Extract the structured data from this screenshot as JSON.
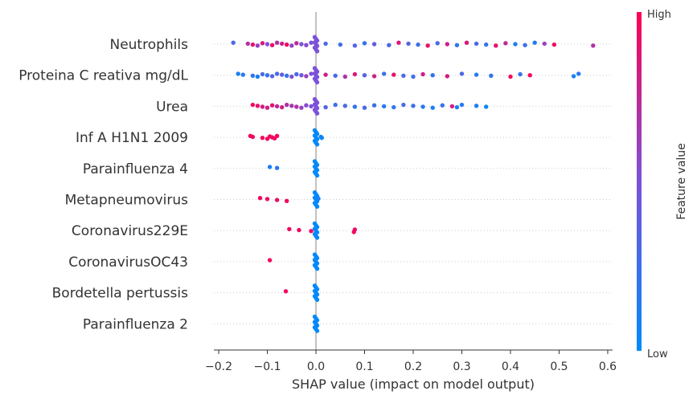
{
  "chart_data": {
    "type": "scatter",
    "subtype": "shap-beeswarm",
    "xlabel": "SHAP value (impact on model output)",
    "xlim": [
      -0.21,
      0.61
    ],
    "x_ticks": [
      -0.2,
      -0.1,
      0.0,
      0.1,
      0.2,
      0.3,
      0.4,
      0.5,
      0.6
    ],
    "x_tick_labels": [
      "−0.2",
      "−0.1",
      "0.0",
      "0.1",
      "0.2",
      "0.3",
      "0.4",
      "0.5",
      "0.6"
    ],
    "zero_line": 0,
    "grid": false,
    "colorbar": {
      "label": "Feature value",
      "high_label": "High",
      "low_label": "Low",
      "low_color": "#008bfb",
      "mid_color": "#7c52d9",
      "high_color": "#ff0052",
      "placement": "right"
    },
    "features": [
      {
        "name": "Neutrophils",
        "points": [
          [
            -0.17,
            0.3
          ],
          [
            -0.14,
            0.7
          ],
          [
            -0.13,
            0.9
          ],
          [
            -0.12,
            0.6
          ],
          [
            -0.11,
            0.85
          ],
          [
            -0.1,
            0.5
          ],
          [
            -0.09,
            0.9
          ],
          [
            -0.08,
            0.7
          ],
          [
            -0.07,
            0.8
          ],
          [
            -0.06,
            0.95
          ],
          [
            -0.05,
            0.6
          ],
          [
            -0.04,
            0.75
          ],
          [
            -0.03,
            0.5
          ],
          [
            -0.02,
            0.55
          ],
          [
            -0.01,
            0.5
          ],
          [
            0.02,
            0.3
          ],
          [
            0.05,
            0.25
          ],
          [
            0.08,
            0.35
          ],
          [
            0.1,
            0.2
          ],
          [
            0.12,
            0.4
          ],
          [
            0.15,
            0.3
          ],
          [
            0.17,
            0.85
          ],
          [
            0.19,
            0.35
          ],
          [
            0.21,
            0.25
          ],
          [
            0.23,
            0.9
          ],
          [
            0.25,
            0.3
          ],
          [
            0.27,
            0.8
          ],
          [
            0.29,
            0.2
          ],
          [
            0.31,
            0.85
          ],
          [
            0.33,
            0.3
          ],
          [
            0.35,
            0.2
          ],
          [
            0.37,
            0.9
          ],
          [
            0.39,
            0.75
          ],
          [
            0.41,
            0.1
          ],
          [
            0.43,
            0.25
          ],
          [
            0.45,
            0.15
          ],
          [
            0.47,
            0.6
          ],
          [
            0.49,
            0.95
          ],
          [
            0.57,
            0.7
          ]
        ]
      },
      {
        "name": "Proteina C reativa mg/dL",
        "points": [
          [
            -0.16,
            0.1
          ],
          [
            -0.15,
            0.15
          ],
          [
            -0.13,
            0.2
          ],
          [
            -0.12,
            0.1
          ],
          [
            -0.11,
            0.3
          ],
          [
            -0.1,
            0.2
          ],
          [
            -0.09,
            0.35
          ],
          [
            -0.08,
            0.3
          ],
          [
            -0.07,
            0.4
          ],
          [
            -0.06,
            0.2
          ],
          [
            -0.05,
            0.5
          ],
          [
            -0.04,
            0.3
          ],
          [
            -0.03,
            0.45
          ],
          [
            -0.02,
            0.6
          ],
          [
            -0.01,
            0.5
          ],
          [
            0.02,
            0.8
          ],
          [
            0.04,
            0.3
          ],
          [
            0.06,
            0.7
          ],
          [
            0.08,
            0.85
          ],
          [
            0.1,
            0.35
          ],
          [
            0.12,
            0.8
          ],
          [
            0.14,
            0.25
          ],
          [
            0.16,
            0.9
          ],
          [
            0.18,
            0.3
          ],
          [
            0.2,
            0.25
          ],
          [
            0.22,
            0.8
          ],
          [
            0.24,
            0.2
          ],
          [
            0.27,
            0.85
          ],
          [
            0.3,
            0.3
          ],
          [
            0.33,
            0.15
          ],
          [
            0.36,
            0.2
          ],
          [
            0.4,
            0.95
          ],
          [
            0.42,
            0.2
          ],
          [
            0.44,
            0.95
          ],
          [
            0.53,
            0.1
          ],
          [
            0.54,
            0.15
          ]
        ]
      },
      {
        "name": "Urea",
        "points": [
          [
            -0.13,
            0.95
          ],
          [
            -0.12,
            0.9
          ],
          [
            -0.11,
            0.85
          ],
          [
            -0.1,
            0.8
          ],
          [
            -0.09,
            0.9
          ],
          [
            -0.08,
            0.75
          ],
          [
            -0.07,
            0.8
          ],
          [
            -0.06,
            0.7
          ],
          [
            -0.05,
            0.65
          ],
          [
            -0.04,
            0.7
          ],
          [
            -0.03,
            0.6
          ],
          [
            -0.02,
            0.55
          ],
          [
            -0.01,
            0.5
          ],
          [
            0.02,
            0.35
          ],
          [
            0.04,
            0.25
          ],
          [
            0.06,
            0.3
          ],
          [
            0.08,
            0.2
          ],
          [
            0.1,
            0.3
          ],
          [
            0.12,
            0.25
          ],
          [
            0.14,
            0.15
          ],
          [
            0.16,
            0.2
          ],
          [
            0.18,
            0.3
          ],
          [
            0.2,
            0.25
          ],
          [
            0.22,
            0.15
          ],
          [
            0.24,
            0.1
          ],
          [
            0.26,
            0.2
          ],
          [
            0.28,
            0.85
          ],
          [
            0.29,
            0.1
          ],
          [
            0.3,
            0.15
          ],
          [
            0.33,
            0.1
          ],
          [
            0.35,
            0.05
          ]
        ]
      },
      {
        "name": "Inf A H1N1 2009",
        "points": [
          [
            -0.135,
            0.95
          ],
          [
            -0.13,
            0.95
          ],
          [
            -0.11,
            0.95
          ],
          [
            -0.1,
            0.95
          ],
          [
            -0.095,
            0.95
          ],
          [
            -0.09,
            0.95
          ],
          [
            -0.085,
            0.95
          ],
          [
            -0.08,
            0.95
          ],
          [
            0.01,
            0.05
          ],
          [
            0.012,
            0.05
          ]
        ]
      },
      {
        "name": "Parainfluenza 4",
        "points": [
          [
            -0.095,
            0.1
          ],
          [
            -0.08,
            0.15
          ]
        ]
      },
      {
        "name": "Metapneumovirus",
        "points": [
          [
            -0.115,
            0.95
          ],
          [
            -0.1,
            0.95
          ],
          [
            -0.08,
            0.95
          ],
          [
            -0.06,
            0.95
          ],
          [
            0.005,
            0.1
          ]
        ]
      },
      {
        "name": "Coronavirus229E",
        "points": [
          [
            -0.055,
            0.95
          ],
          [
            -0.035,
            0.95
          ],
          [
            -0.01,
            0.95
          ],
          [
            0.078,
            0.95
          ],
          [
            0.08,
            0.95
          ]
        ]
      },
      {
        "name": "CoronavirusOC43",
        "points": [
          [
            -0.095,
            0.95
          ]
        ]
      },
      {
        "name": "Bordetella pertussis",
        "points": [
          [
            -0.062,
            0.95
          ]
        ]
      },
      {
        "name": "Parainfluenza 2",
        "points": []
      }
    ]
  }
}
